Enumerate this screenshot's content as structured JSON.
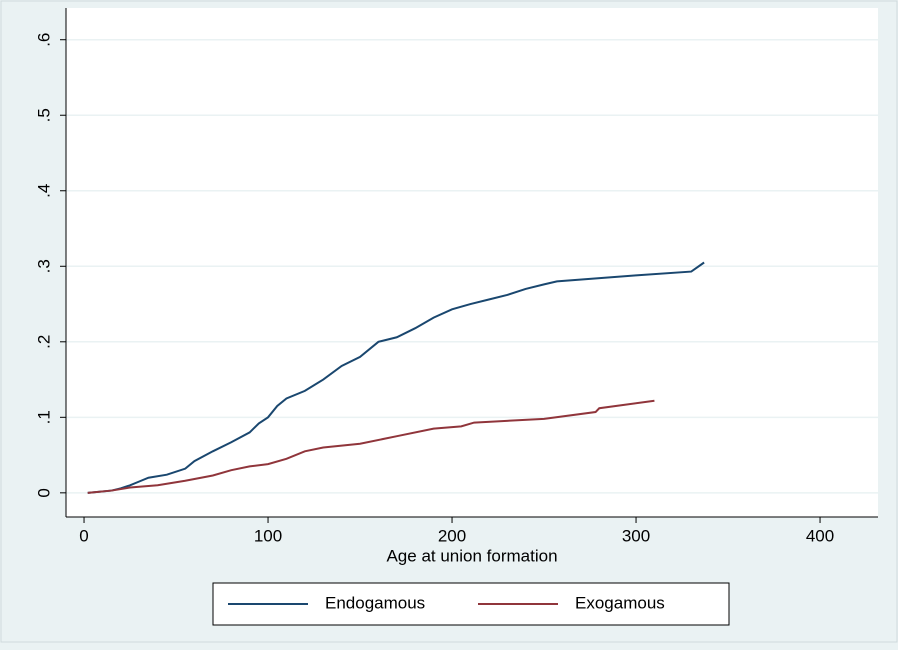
{
  "chart_data": {
    "type": "line",
    "xlabel": "Age at union formation",
    "xlim": [
      -9.8,
      431.5
    ],
    "ylim": [
      -0.032,
      0.642
    ],
    "xticks": [
      0,
      100,
      200,
      300,
      400
    ],
    "yticks": [
      0,
      {
        "value": 0.1,
        "label": ".1"
      },
      {
        "value": 0.2,
        "label": ".2"
      },
      {
        "value": 0.3,
        "label": ".3"
      },
      {
        "value": 0.4,
        "label": ".4"
      },
      {
        "value": 0.5,
        "label": ".5"
      },
      {
        "value": 0.6,
        "label": ".6"
      }
    ],
    "grid": true,
    "legend": "bottom",
    "series": [
      {
        "name": "Endogamous",
        "color": "#1a476f",
        "x": [
          2,
          15,
          20,
          25,
          30,
          35,
          45,
          55,
          60,
          70,
          80,
          90,
          95,
          100,
          105,
          110,
          120,
          130,
          140,
          150,
          160,
          170,
          180,
          190,
          200,
          210,
          220,
          230,
          240,
          250,
          257,
          300,
          330,
          337
        ],
        "values": [
          0,
          0.003,
          0.006,
          0.01,
          0.015,
          0.02,
          0.024,
          0.032,
          0.042,
          0.055,
          0.067,
          0.08,
          0.092,
          0.1,
          0.115,
          0.125,
          0.135,
          0.15,
          0.168,
          0.18,
          0.2,
          0.206,
          0.218,
          0.232,
          0.243,
          0.25,
          0.256,
          0.262,
          0.27,
          0.276,
          0.28,
          0.288,
          0.293,
          0.305
        ]
      },
      {
        "name": "Exogamous",
        "color": "#90353b",
        "x": [
          2,
          15,
          25,
          40,
          55,
          70,
          80,
          90,
          100,
          110,
          120,
          130,
          150,
          170,
          190,
          205,
          212,
          250,
          278,
          280,
          310
        ],
        "values": [
          0,
          0.003,
          0.007,
          0.01,
          0.016,
          0.023,
          0.03,
          0.035,
          0.038,
          0.045,
          0.055,
          0.06,
          0.065,
          0.075,
          0.085,
          0.088,
          0.093,
          0.098,
          0.107,
          0.112,
          0.122
        ]
      }
    ]
  }
}
